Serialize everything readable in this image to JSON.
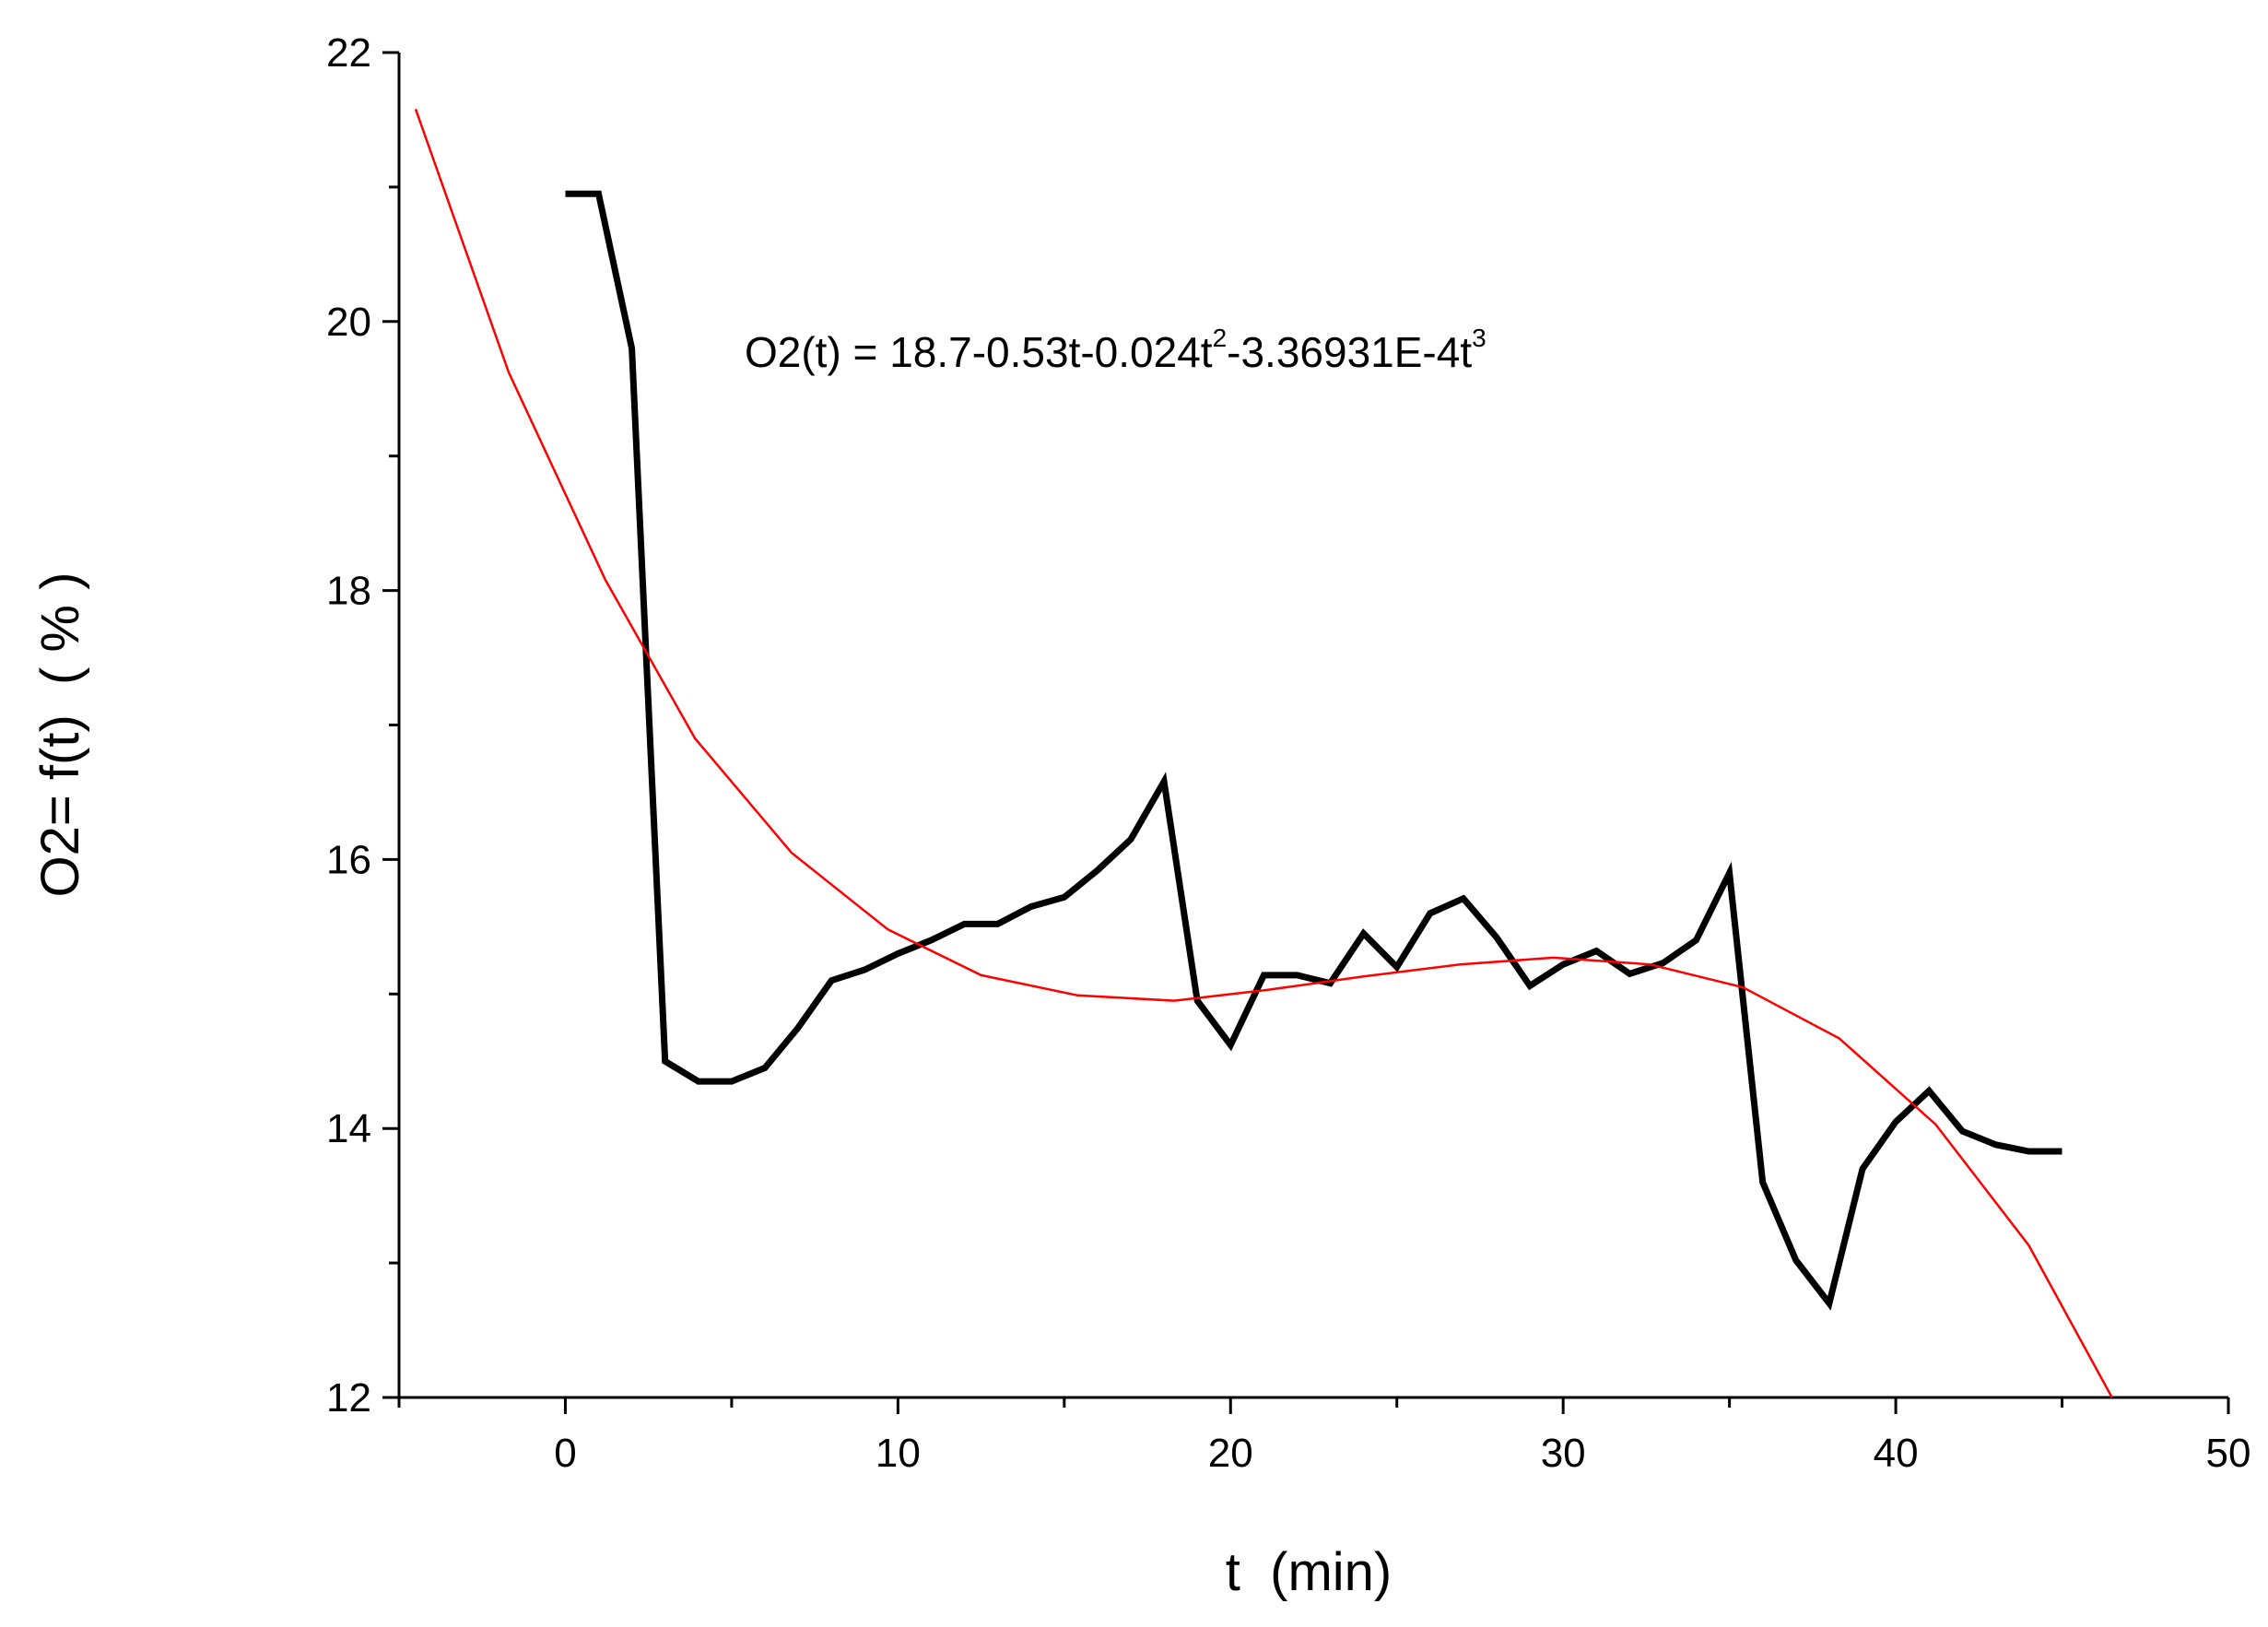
{
  "chart_data": {
    "type": "line",
    "xlabel": "t  (min)",
    "ylabel": "O2= f(t)  ( % )",
    "xlim": [
      -5,
      50
    ],
    "ylim": [
      12,
      22
    ],
    "x_ticks": [
      0,
      10,
      20,
      30,
      40,
      50
    ],
    "y_ticks": [
      12,
      14,
      16,
      18,
      20,
      22
    ],
    "grid": false,
    "annotation": {
      "main": "O2(t) = 18.7-0.53t-0.024t",
      "sup1": "2",
      "mid": "-3.36931E-4t",
      "sup2": "3"
    },
    "series": [
      {
        "color": "#000000",
        "x": [
          0,
          1,
          2,
          3,
          4,
          5,
          6,
          7,
          8,
          9,
          10,
          11,
          12,
          13,
          14,
          15,
          16,
          17,
          18,
          19,
          20,
          21,
          22,
          23,
          24,
          25,
          26,
          27,
          28,
          29,
          30,
          31,
          32,
          33,
          34,
          35,
          36,
          37,
          38,
          39,
          40,
          41,
          42,
          43,
          44,
          45
        ],
        "values": [
          20.95,
          20.95,
          19.8,
          14.5,
          14.35,
          14.35,
          14.45,
          14.75,
          15.1,
          15.18,
          15.3,
          15.4,
          15.52,
          15.52,
          15.65,
          15.72,
          15.92,
          16.15,
          16.58,
          14.95,
          14.62,
          15.14,
          15.14,
          15.08,
          15.45,
          15.2,
          15.6,
          15.71,
          15.42,
          15.06,
          15.22,
          15.32,
          15.15,
          15.23,
          15.4,
          15.9,
          13.6,
          13.02,
          12.7,
          13.7,
          14.05,
          14.28,
          13.98,
          13.88,
          13.83,
          13.83
        ]
      },
      {
        "color": "#ff0000",
        "x": [
          -4.5,
          -1.7,
          1.2,
          3.9,
          6.8,
          9.7,
          12.5,
          15.4,
          18.3,
          21.1,
          24.0,
          26.9,
          29.7,
          32.6,
          35.4,
          38.3,
          41.2,
          44.0,
          46.5
        ],
        "values": [
          21.58,
          19.62,
          18.08,
          16.9,
          16.05,
          15.48,
          15.14,
          14.99,
          14.95,
          15.03,
          15.13,
          15.22,
          15.27,
          15.22,
          15.05,
          14.67,
          14.03,
          13.13,
          12.0
        ]
      }
    ]
  }
}
